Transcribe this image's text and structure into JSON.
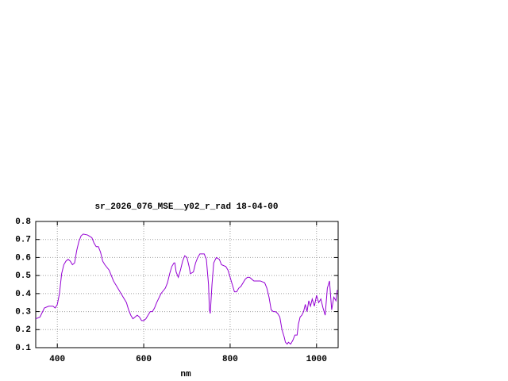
{
  "chart_data": {
    "type": "line",
    "title": "sr_2026_076_MSE__y02_r_rad 18-04-00",
    "x_label": "nm",
    "xlim": [
      350,
      1050
    ],
    "xticks": [
      400,
      600,
      800,
      1000
    ],
    "ylim": [
      0.1,
      0.8
    ],
    "yticks": [
      0.1,
      0.2,
      0.3,
      0.4,
      0.5,
      0.6,
      0.7,
      0.8
    ],
    "grid": true,
    "x": [
      350,
      360,
      370,
      380,
      390,
      395,
      400,
      405,
      410,
      415,
      420,
      425,
      430,
      435,
      440,
      445,
      450,
      455,
      460,
      470,
      480,
      485,
      490,
      495,
      500,
      505,
      510,
      520,
      530,
      540,
      550,
      560,
      565,
      570,
      575,
      580,
      585,
      590,
      595,
      600,
      605,
      610,
      615,
      620,
      625,
      630,
      640,
      650,
      655,
      660,
      665,
      670,
      672,
      675,
      680,
      685,
      690,
      695,
      700,
      705,
      708,
      715,
      720,
      725,
      730,
      740,
      745,
      750,
      752,
      754,
      758,
      762,
      768,
      775,
      780,
      790,
      795,
      800,
      805,
      810,
      815,
      820,
      825,
      830,
      835,
      840,
      845,
      850,
      855,
      860,
      870,
      880,
      885,
      890,
      895,
      900,
      905,
      910,
      915,
      920,
      925,
      928,
      932,
      935,
      940,
      945,
      950,
      955,
      958,
      962,
      966,
      970,
      974,
      978,
      982,
      986,
      990,
      995,
      1000,
      1005,
      1010,
      1015,
      1020,
      1025,
      1030,
      1035,
      1040,
      1045,
      1048
    ],
    "series": [
      {
        "color": "#9400d3",
        "values": [
          0.26,
          0.27,
          0.32,
          0.33,
          0.33,
          0.32,
          0.34,
          0.4,
          0.51,
          0.56,
          0.58,
          0.59,
          0.58,
          0.56,
          0.57,
          0.64,
          0.69,
          0.72,
          0.73,
          0.725,
          0.71,
          0.68,
          0.66,
          0.66,
          0.63,
          0.58,
          0.56,
          0.53,
          0.47,
          0.43,
          0.39,
          0.35,
          0.31,
          0.28,
          0.26,
          0.27,
          0.28,
          0.27,
          0.25,
          0.25,
          0.26,
          0.28,
          0.3,
          0.3,
          0.32,
          0.35,
          0.4,
          0.43,
          0.46,
          0.51,
          0.55,
          0.57,
          0.57,
          0.52,
          0.49,
          0.53,
          0.58,
          0.61,
          0.6,
          0.55,
          0.51,
          0.52,
          0.57,
          0.6,
          0.62,
          0.62,
          0.59,
          0.45,
          0.31,
          0.29,
          0.45,
          0.57,
          0.6,
          0.59,
          0.56,
          0.55,
          0.53,
          0.49,
          0.45,
          0.41,
          0.41,
          0.43,
          0.44,
          0.46,
          0.48,
          0.49,
          0.49,
          0.48,
          0.47,
          0.47,
          0.47,
          0.46,
          0.43,
          0.38,
          0.31,
          0.3,
          0.3,
          0.29,
          0.27,
          0.2,
          0.16,
          0.13,
          0.12,
          0.13,
          0.12,
          0.14,
          0.17,
          0.17,
          0.23,
          0.27,
          0.28,
          0.3,
          0.34,
          0.3,
          0.36,
          0.33,
          0.37,
          0.33,
          0.39,
          0.35,
          0.37,
          0.32,
          0.28,
          0.43,
          0.47,
          0.31,
          0.38,
          0.36,
          0.42
        ]
      }
    ]
  }
}
